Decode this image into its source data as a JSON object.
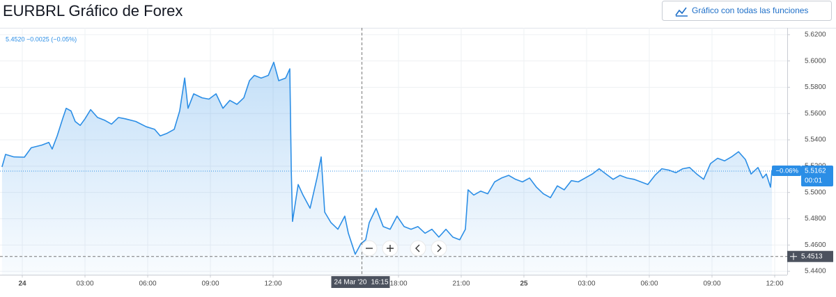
{
  "header": {
    "title": "EURBRL Gráfico de Forex",
    "button": "Gráfico con todas las funciones"
  },
  "chart_data": {
    "type": "area",
    "legend": "5.4520 −0.0025 (−0.05%)",
    "x": [
      -0.97,
      -0.8,
      -0.4,
      0.1,
      0.43,
      0.93,
      1.27,
      1.43,
      1.67,
      1.93,
      2.1,
      2.33,
      2.53,
      2.77,
      3,
      3.27,
      3.6,
      3.93,
      4.27,
      4.6,
      4.93,
      5.43,
      5.93,
      6.33,
      6.6,
      6.93,
      7.27,
      7.53,
      7.77,
      7.93,
      8.2,
      8.6,
      8.93,
      9.27,
      9.6,
      9.93,
      10.27,
      10.6,
      10.87,
      11.1,
      11.43,
      11.77,
      12.03,
      12.27,
      12.6,
      12.8,
      12.87,
      12.93,
      13.2,
      13.43,
      13.77,
      14.1,
      14.3,
      14.47,
      14.77,
      15.1,
      15.43,
      15.6,
      15.93,
      16.2,
      16.43,
      16.6,
      16.93,
      17.27,
      17.6,
      17.93,
      18.27,
      18.6,
      18.93,
      19.27,
      19.6,
      19.93,
      20.27,
      20.6,
      20.93,
      21.2,
      21.33,
      21.6,
      21.93,
      22.27,
      22.6,
      22.93,
      23.27,
      23.6,
      23.93,
      24.27,
      24.6,
      24.93,
      25.27,
      25.6,
      25.93,
      26.27,
      26.6,
      26.93,
      27.27,
      27.6,
      27.93,
      28.27,
      28.6,
      28.93,
      29.27,
      29.6,
      29.93,
      30.27,
      30.6,
      30.93,
      31.27,
      31.6,
      31.93,
      32.27,
      32.6,
      32.93,
      33.27,
      33.6,
      33.93,
      34.27,
      34.6,
      34.87,
      35.2,
      35.43,
      35.6,
      35.8,
      35.87
    ],
    "series": [
      {
        "name": "EURBRL",
        "color": "#2b8ee6",
        "values": [
          5.5194,
          5.5289,
          5.527,
          5.5268,
          5.534,
          5.536,
          5.538,
          5.533,
          5.543,
          5.556,
          5.564,
          5.562,
          5.554,
          5.551,
          5.556,
          5.563,
          5.557,
          5.555,
          5.552,
          5.557,
          5.556,
          5.554,
          5.55,
          5.548,
          5.543,
          5.545,
          5.548,
          5.562,
          5.587,
          5.564,
          5.575,
          5.572,
          5.571,
          5.575,
          5.564,
          5.57,
          5.567,
          5.572,
          5.585,
          5.589,
          5.587,
          5.589,
          5.599,
          5.585,
          5.587,
          5.594,
          5.517,
          5.478,
          5.506,
          5.498,
          5.488,
          5.511,
          5.527,
          5.485,
          5.477,
          5.472,
          5.482,
          5.469,
          5.453,
          5.461,
          5.464,
          5.477,
          5.488,
          5.474,
          5.472,
          5.482,
          5.474,
          5.472,
          5.474,
          5.469,
          5.472,
          5.466,
          5.472,
          5.466,
          5.464,
          5.472,
          5.502,
          5.498,
          5.501,
          5.499,
          5.508,
          5.511,
          5.513,
          5.51,
          5.508,
          5.511,
          5.504,
          5.499,
          5.496,
          5.505,
          5.502,
          5.509,
          5.508,
          5.511,
          5.514,
          5.518,
          5.514,
          5.51,
          5.513,
          5.511,
          5.51,
          5.508,
          5.506,
          5.513,
          5.518,
          5.517,
          5.515,
          5.518,
          5.519,
          5.514,
          5.51,
          5.522,
          5.526,
          5.524,
          5.527,
          5.531,
          5.525,
          5.514,
          5.519,
          5.511,
          5.514,
          5.504,
          5.517
        ]
      }
    ],
    "xlim": [
      -1,
      36.5
    ],
    "xticks": [
      {
        "value": 0,
        "label": "24"
      },
      {
        "value": 3,
        "label": "03:00"
      },
      {
        "value": 6,
        "label": "06:00"
      },
      {
        "value": 9,
        "label": "09:00"
      },
      {
        "value": 12,
        "label": "12:00"
      },
      {
        "value": 18,
        "label": "18:00"
      },
      {
        "value": 21,
        "label": "21:00"
      },
      {
        "value": 24,
        "label": "25"
      },
      {
        "value": 27,
        "label": "03:00"
      },
      {
        "value": 30,
        "label": "06:00"
      },
      {
        "value": 33,
        "label": "09:00"
      },
      {
        "value": 36,
        "label": "12:00"
      }
    ],
    "ylim": [
      5.4374,
      5.6252
    ],
    "yticks": [
      {
        "value": 5.44,
        "label": "5.4400"
      },
      {
        "value": 5.46,
        "label": "5.4600"
      },
      {
        "value": 5.48,
        "label": "5.4800"
      },
      {
        "value": 5.5,
        "label": "5.5000"
      },
      {
        "value": 5.52,
        "label": "5.5200"
      },
      {
        "value": 5.54,
        "label": "5.5400"
      },
      {
        "value": 5.56,
        "label": "5.5600"
      },
      {
        "value": 5.58,
        "label": "5.5800"
      },
      {
        "value": 5.6,
        "label": "5.6000"
      },
      {
        "value": 5.62,
        "label": "5.6200"
      }
    ],
    "grid": true,
    "last_price": {
      "value": 5.5162,
      "change": "−0.06%",
      "countdown": "00:01"
    },
    "crosshair": {
      "price": 5.4513,
      "time": 16.25,
      "date_label": "24 Mar '20",
      "time_label": "16:15"
    }
  }
}
